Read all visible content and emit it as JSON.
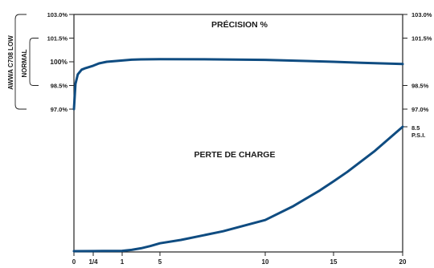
{
  "chart_data": {
    "type": "line",
    "colors": {
      "curve": "#0f4c81",
      "frame": "#222222",
      "text": "#1a1a1a"
    },
    "x_ticks": [
      {
        "v": 0,
        "label": "0"
      },
      {
        "v": 0.25,
        "label": "1/4"
      },
      {
        "v": 1,
        "label": "1"
      },
      {
        "v": 5,
        "label": "5"
      },
      {
        "v": 10,
        "label": "10"
      },
      {
        "v": 15,
        "label": "15"
      },
      {
        "v": 20,
        "label": "20"
      }
    ],
    "left_ticks": [
      {
        "v": 103.0,
        "label": "103.0%"
      },
      {
        "v": 101.5,
        "label": "101.5%"
      },
      {
        "v": 100.0,
        "label": "100%"
      },
      {
        "v": 98.5,
        "label": "98.5%"
      },
      {
        "v": 97.0,
        "label": "97.0%"
      }
    ],
    "right_ticks": [
      {
        "v": 103.0,
        "label": "103.0%"
      },
      {
        "v": 101.5,
        "label": "101.5%"
      },
      {
        "v": 98.5,
        "label": "98.5%"
      },
      {
        "v": 97.0,
        "label": "97.0%"
      }
    ],
    "accuracy_ylim": [
      97.0,
      103.0
    ],
    "pressure_end": {
      "value": 8.5,
      "label_value": "8.5",
      "label_unit": "P.S.I."
    },
    "labels": {
      "accuracy_title": "PRÉCISION %",
      "pressure_title": "PERTE DE CHARGE",
      "awwa_bracket": "AWWA C708 LOW",
      "normal_bracket": "NORMAL"
    },
    "series": [
      {
        "key": "accuracy",
        "x": [
          0,
          0.02,
          0.05,
          0.1,
          0.15,
          0.25,
          0.4,
          0.6,
          1,
          2,
          3,
          5,
          7,
          10,
          13,
          15,
          17,
          20
        ],
        "y": [
          97.0,
          98.6,
          99.2,
          99.5,
          99.6,
          99.75,
          99.9,
          100.0,
          100.08,
          100.13,
          100.15,
          100.17,
          100.16,
          100.12,
          100.05,
          100.0,
          99.94,
          99.86
        ]
      },
      {
        "key": "pressure",
        "x": [
          0,
          0.25,
          0.5,
          1,
          2,
          3,
          4,
          5,
          6,
          8,
          10,
          12,
          14,
          15,
          16,
          18,
          20
        ],
        "y": [
          0,
          0.005,
          0.01,
          0.02,
          0.09,
          0.2,
          0.35,
          0.54,
          0.77,
          1.36,
          2.13,
          3.05,
          4.15,
          4.77,
          5.42,
          6.86,
          8.5
        ]
      }
    ]
  }
}
